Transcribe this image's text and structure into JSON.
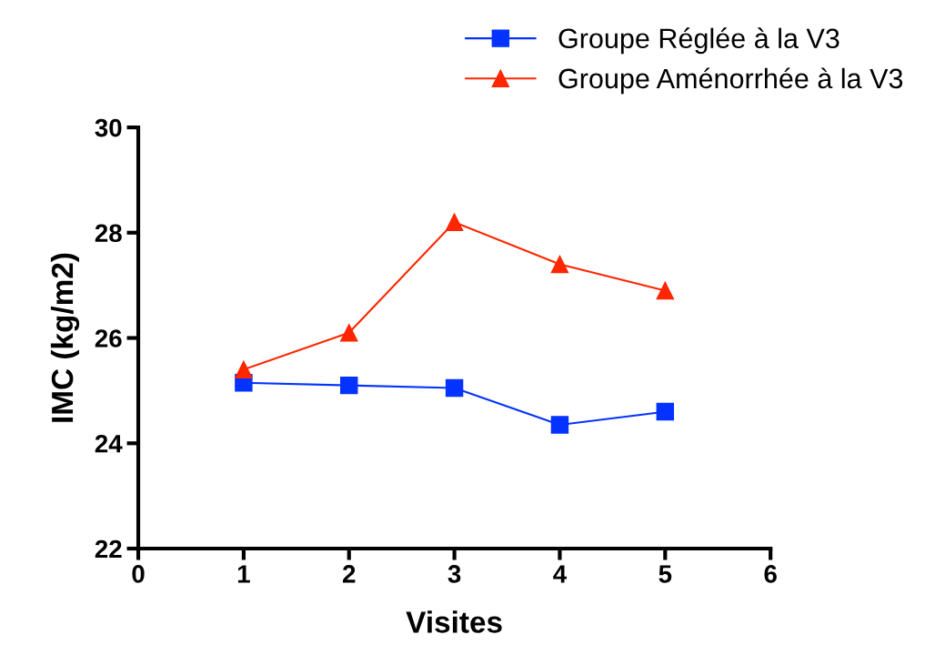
{
  "chart_data": {
    "type": "line",
    "xlabel": "Visites",
    "ylabel": "IMC (kg/m2)",
    "x": [
      1,
      2,
      3,
      4,
      5
    ],
    "series": [
      {
        "name": "Groupe Réglée à la V3",
        "color": "#0433ff",
        "marker": "square",
        "values": [
          25.15,
          25.1,
          25.05,
          24.35,
          24.6
        ]
      },
      {
        "name": "Groupe Aménorrhée à la V3",
        "color": "#ff2600",
        "marker": "triangle",
        "values": [
          25.4,
          26.1,
          28.2,
          27.4,
          26.9
        ]
      }
    ],
    "xlim": [
      0,
      6
    ],
    "xticks": [
      0,
      1,
      2,
      3,
      4,
      5,
      6
    ],
    "ylim": [
      22,
      30
    ],
    "yticks": [
      22,
      24,
      26,
      28,
      30
    ],
    "grid": false,
    "legend": "top right",
    "line_style": "solid"
  }
}
